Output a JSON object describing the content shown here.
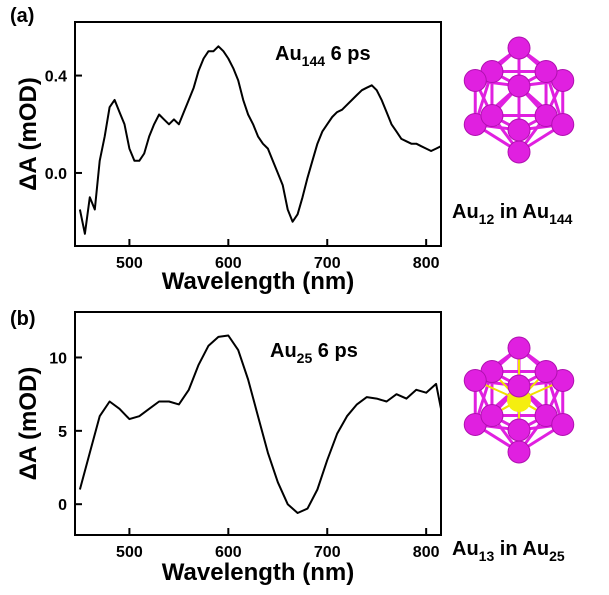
{
  "chart_data": [
    {
      "type": "line",
      "panel_label": "(a)",
      "annotation": [
        {
          "text": "Au"
        },
        {
          "sub": "144"
        },
        {
          "text": " 6 ps"
        }
      ],
      "structure_label": [
        {
          "text": "Au"
        },
        {
          "sub": "12"
        },
        {
          "text": " in Au"
        },
        {
          "sub": "144"
        }
      ],
      "xlabel": "Wavelength (nm)",
      "ylabel": "ΔA (mOD)",
      "x": [
        450,
        455,
        460,
        465,
        470,
        475,
        480,
        485,
        490,
        495,
        500,
        505,
        510,
        515,
        520,
        525,
        530,
        535,
        540,
        545,
        550,
        555,
        560,
        565,
        570,
        575,
        580,
        585,
        590,
        595,
        600,
        605,
        610,
        615,
        620,
        625,
        630,
        635,
        640,
        645,
        650,
        655,
        660,
        665,
        670,
        675,
        680,
        685,
        690,
        695,
        700,
        705,
        710,
        715,
        720,
        725,
        730,
        735,
        740,
        745,
        750,
        755,
        760,
        765,
        770,
        775,
        780,
        785,
        790,
        795,
        800,
        805,
        810,
        815
      ],
      "series": [
        {
          "color": "#000000",
          "values": [
            -0.15,
            -0.25,
            -0.1,
            -0.15,
            0.05,
            0.15,
            0.27,
            0.3,
            0.25,
            0.2,
            0.1,
            0.05,
            0.05,
            0.08,
            0.15,
            0.2,
            0.24,
            0.22,
            0.2,
            0.22,
            0.2,
            0.25,
            0.3,
            0.35,
            0.42,
            0.47,
            0.5,
            0.5,
            0.52,
            0.5,
            0.47,
            0.43,
            0.38,
            0.3,
            0.24,
            0.2,
            0.15,
            0.12,
            0.1,
            0.05,
            0.0,
            -0.05,
            -0.15,
            -0.2,
            -0.17,
            -0.1,
            -0.02,
            0.05,
            0.12,
            0.17,
            0.2,
            0.23,
            0.25,
            0.26,
            0.28,
            0.3,
            0.32,
            0.34,
            0.35,
            0.36,
            0.34,
            0.3,
            0.25,
            0.2,
            0.17,
            0.14,
            0.13,
            0.12,
            0.12,
            0.11,
            0.1,
            0.09,
            0.1,
            0.11
          ]
        }
      ],
      "xlim": [
        445,
        815
      ],
      "ylim": [
        -0.3,
        0.62
      ],
      "xticks": [
        500,
        600,
        700,
        800
      ],
      "yticks": [
        {
          "value": 0,
          "label": "0.0"
        },
        0.4
      ]
    },
    {
      "type": "line",
      "panel_label": "(b)",
      "annotation": [
        {
          "text": "Au"
        },
        {
          "sub": "25"
        },
        {
          "text": " 6 ps"
        }
      ],
      "structure_label": [
        {
          "text": "Au"
        },
        {
          "sub": "13"
        },
        {
          "text": " in Au"
        },
        {
          "sub": "25"
        }
      ],
      "xlabel": "Wavelength (nm)",
      "ylabel": "ΔA (mOD)",
      "x": [
        450,
        460,
        470,
        480,
        490,
        500,
        510,
        520,
        530,
        540,
        550,
        560,
        570,
        580,
        590,
        600,
        610,
        620,
        630,
        640,
        650,
        660,
        670,
        680,
        690,
        700,
        710,
        720,
        730,
        740,
        750,
        760,
        770,
        780,
        790,
        800,
        810,
        815
      ],
      "series": [
        {
          "color": "#000000",
          "values": [
            1.0,
            3.5,
            6.0,
            7.0,
            6.5,
            5.8,
            6.0,
            6.5,
            7.0,
            7.0,
            6.8,
            7.8,
            9.5,
            10.8,
            11.4,
            11.5,
            10.5,
            8.5,
            6.0,
            3.5,
            1.5,
            0.0,
            -0.6,
            -0.3,
            1.0,
            3.0,
            4.8,
            6.0,
            6.8,
            7.3,
            7.2,
            7.0,
            7.5,
            7.2,
            7.8,
            7.6,
            8.2,
            6.5
          ]
        }
      ],
      "xlim": [
        445,
        815
      ],
      "ylim": [
        -2.1,
        13.1
      ],
      "xticks": [
        500,
        600,
        700,
        800
      ],
      "yticks": [
        0,
        5,
        10
      ]
    }
  ]
}
